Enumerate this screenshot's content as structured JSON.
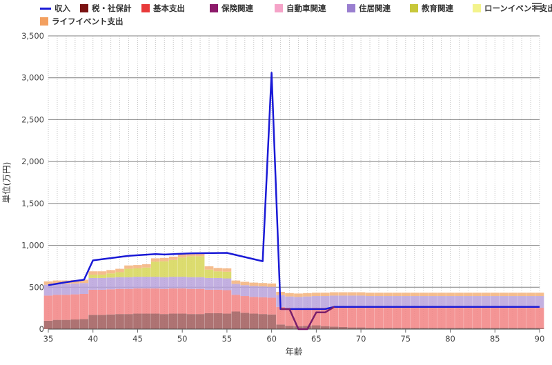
{
  "chart_data": {
    "type": "stacked bar + line",
    "title": "",
    "xlabel": "年齢",
    "ylabel": "単位(万円)",
    "xlim": [
      35,
      90
    ],
    "ylim": [
      0,
      3500
    ],
    "x_ticks": [
      35,
      40,
      45,
      50,
      55,
      60,
      65,
      70,
      75,
      80,
      85,
      90
    ],
    "y_ticks": [
      0,
      500,
      1000,
      1500,
      2000,
      2500,
      3000,
      3500
    ],
    "y_tick_labels": [
      "0",
      "500",
      "1,000",
      "1,500",
      "2,000",
      "2,500",
      "3,000",
      "3,500"
    ],
    "grid": true,
    "legend_position": "top",
    "x": [
      35,
      36,
      37,
      38,
      39,
      40,
      41,
      42,
      43,
      44,
      45,
      46,
      47,
      48,
      49,
      50,
      51,
      52,
      53,
      54,
      55,
      56,
      57,
      58,
      59,
      60,
      61,
      62,
      63,
      64,
      65,
      66,
      67,
      68,
      69,
      70,
      71,
      72,
      73,
      74,
      75,
      76,
      77,
      78,
      79,
      80,
      81,
      82,
      83,
      84,
      85,
      86,
      87,
      88,
      89,
      90
    ],
    "series": [
      {
        "name": "税・社保計",
        "kind": "bar",
        "color": "#a05b5b",
        "values": [
          100,
          110,
          110,
          115,
          120,
          170,
          170,
          175,
          180,
          180,
          185,
          185,
          185,
          180,
          185,
          185,
          180,
          180,
          190,
          190,
          185,
          210,
          195,
          185,
          180,
          175,
          55,
          40,
          35,
          40,
          45,
          35,
          30,
          25,
          20,
          20,
          15,
          15,
          15,
          15,
          15,
          15,
          15,
          15,
          15,
          15,
          15,
          15,
          15,
          15,
          15,
          15,
          15,
          15,
          15,
          15
        ]
      },
      {
        "name": "基本支出",
        "kind": "bar",
        "color": "#f28282",
        "values": [
          300,
          300,
          300,
          300,
          300,
          300,
          300,
          300,
          300,
          300,
          300,
          300,
          300,
          300,
          300,
          300,
          300,
          300,
          280,
          280,
          280,
          200,
          200,
          200,
          200,
          200,
          210,
          210,
          210,
          210,
          210,
          220,
          230,
          235,
          240,
          240,
          240,
          240,
          240,
          240,
          240,
          240,
          240,
          240,
          240,
          240,
          240,
          240,
          240,
          240,
          240,
          240,
          240,
          240,
          240,
          240
        ]
      },
      {
        "name": "保険関連",
        "kind": "bar",
        "color": "#8c1a6a",
        "values": [
          0,
          0,
          0,
          0,
          0,
          0,
          0,
          0,
          0,
          0,
          0,
          0,
          0,
          0,
          0,
          0,
          0,
          0,
          0,
          0,
          0,
          0,
          0,
          0,
          0,
          0,
          0,
          0,
          0,
          0,
          0,
          0,
          0,
          0,
          0,
          0,
          0,
          0,
          0,
          0,
          0,
          0,
          0,
          0,
          0,
          0,
          0,
          0,
          0,
          0,
          0,
          0,
          0,
          0,
          0,
          0
        ]
      },
      {
        "name": "自動車関連",
        "kind": "bar",
        "color": "#f5a3c8",
        "values": [
          0,
          0,
          0,
          0,
          0,
          0,
          0,
          0,
          0,
          0,
          0,
          0,
          0,
          0,
          0,
          0,
          0,
          0,
          0,
          0,
          0,
          0,
          0,
          0,
          0,
          0,
          0,
          0,
          0,
          0,
          0,
          0,
          0,
          0,
          0,
          0,
          0,
          0,
          0,
          0,
          0,
          0,
          0,
          0,
          0,
          0,
          0,
          0,
          0,
          0,
          0,
          0,
          0,
          0,
          0,
          0
        ]
      },
      {
        "name": "住居関連",
        "kind": "bar",
        "color": "#b8a2dc",
        "values": [
          130,
          130,
          130,
          130,
          130,
          140,
          140,
          140,
          140,
          140,
          140,
          140,
          140,
          140,
          140,
          140,
          140,
          140,
          140,
          140,
          140,
          130,
          130,
          130,
          130,
          130,
          140,
          140,
          140,
          140,
          140,
          140,
          140,
          140,
          140,
          140,
          140,
          140,
          140,
          140,
          140,
          140,
          140,
          140,
          140,
          140,
          140,
          140,
          140,
          140,
          140,
          140,
          140,
          140,
          140,
          140
        ]
      },
      {
        "name": "教育関連",
        "kind": "bar",
        "color": "#d6d656",
        "values": [
          0,
          0,
          0,
          0,
          0,
          40,
          40,
          50,
          60,
          100,
          100,
          110,
          180,
          190,
          200,
          230,
          250,
          250,
          100,
          80,
          80,
          0,
          0,
          0,
          0,
          0,
          0,
          0,
          0,
          0,
          0,
          0,
          0,
          0,
          0,
          0,
          0,
          0,
          0,
          0,
          0,
          0,
          0,
          0,
          0,
          0,
          0,
          0,
          0,
          0,
          0,
          0,
          0,
          0,
          0,
          0
        ]
      },
      {
        "name": "ローンイベント支出",
        "kind": "bar",
        "color": "#f3f38c",
        "values": [
          0,
          0,
          0,
          0,
          0,
          0,
          0,
          0,
          0,
          0,
          0,
          0,
          0,
          0,
          0,
          0,
          0,
          0,
          0,
          0,
          0,
          0,
          0,
          0,
          0,
          0,
          0,
          0,
          0,
          0,
          0,
          0,
          0,
          0,
          0,
          0,
          0,
          0,
          0,
          0,
          0,
          0,
          0,
          0,
          0,
          0,
          0,
          0,
          0,
          0,
          0,
          0,
          0,
          0,
          0,
          0
        ]
      },
      {
        "name": "ライフイベント支出",
        "kind": "bar",
        "color": "#f3b27a",
        "values": [
          40,
          40,
          40,
          40,
          40,
          40,
          40,
          40,
          40,
          40,
          40,
          40,
          40,
          40,
          40,
          40,
          40,
          40,
          40,
          40,
          40,
          40,
          40,
          40,
          40,
          40,
          40,
          40,
          40,
          40,
          40,
          40,
          40,
          40,
          40,
          40,
          40,
          40,
          40,
          40,
          40,
          40,
          40,
          40,
          40,
          40,
          40,
          40,
          40,
          40,
          40,
          40,
          40,
          40,
          40,
          40
        ]
      },
      {
        "name": "収入",
        "kind": "line",
        "color": "#1a1ad6",
        "points": [
          [
            35,
            525
          ],
          [
            37,
            560
          ],
          [
            39,
            590
          ],
          [
            40,
            820
          ],
          [
            44,
            875
          ],
          [
            47,
            895
          ],
          [
            48,
            890
          ],
          [
            51,
            905
          ],
          [
            55,
            910
          ],
          [
            59,
            810
          ],
          [
            60,
            3060
          ],
          [
            61,
            240
          ],
          [
            62,
            240
          ],
          [
            63,
            240
          ],
          [
            64,
            240
          ],
          [
            65,
            240
          ],
          [
            66,
            240
          ],
          [
            67,
            265
          ],
          [
            90,
            265
          ]
        ]
      },
      {
        "name": "収入(残高)",
        "kind": "line",
        "color": "#7a1f6b",
        "legend": false,
        "points": [
          [
            61,
            240
          ],
          [
            62,
            240
          ],
          [
            63,
            0
          ],
          [
            64,
            0
          ],
          [
            65,
            200
          ],
          [
            66,
            200
          ],
          [
            67,
            265
          ]
        ]
      }
    ]
  },
  "legend_items": [
    {
      "label": "収入",
      "color": "#1a1ad6",
      "marker": "line"
    },
    {
      "label": "税・社保計",
      "color": "#7a1212",
      "marker": "box"
    },
    {
      "label": "基本支出",
      "color": "#e83a3a",
      "marker": "box"
    },
    {
      "label": "保険関連",
      "color": "#8c1a6a",
      "marker": "box"
    },
    {
      "label": "自動車関連",
      "color": "#f5a3c8",
      "marker": "box"
    },
    {
      "label": "住居関連",
      "color": "#9a7fd0",
      "marker": "box"
    },
    {
      "label": "教育関連",
      "color": "#c8c83a",
      "marker": "box"
    },
    {
      "label": "ローンイベント支出",
      "color": "#f3f38c",
      "marker": "box"
    },
    {
      "label": "ライフイベント支出",
      "color": "#f3a060",
      "marker": "box"
    }
  ],
  "menu_icon": "hamburger-menu-icon"
}
